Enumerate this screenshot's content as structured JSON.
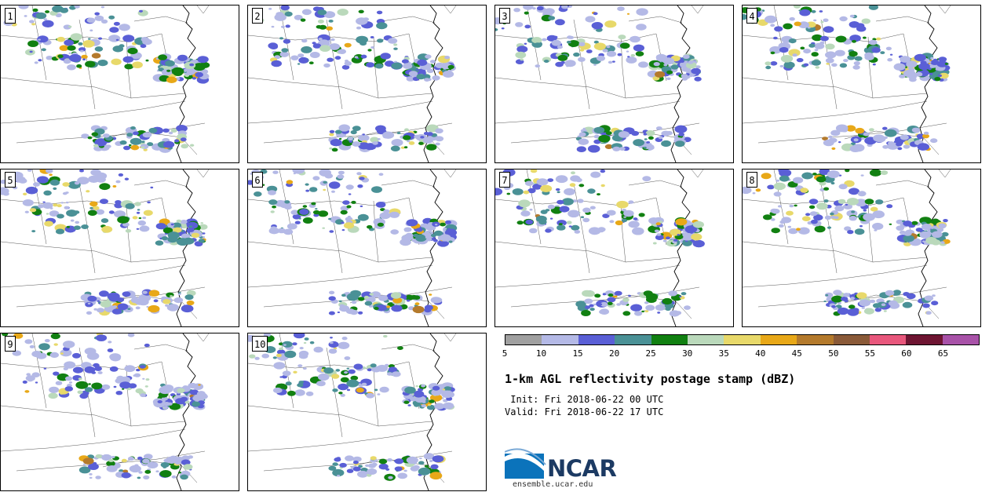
{
  "panels": [
    {
      "label": "1"
    },
    {
      "label": "2"
    },
    {
      "label": "3"
    },
    {
      "label": "4"
    },
    {
      "label": "5"
    },
    {
      "label": "6"
    },
    {
      "label": "7"
    },
    {
      "label": "8"
    },
    {
      "label": "9"
    },
    {
      "label": "10"
    }
  ],
  "colorbar": {
    "colors": [
      "#a0a0a0",
      "#b4b9e6",
      "#5a5fd6",
      "#4a9196",
      "#118011",
      "#bad9bb",
      "#e8d96a",
      "#e8a818",
      "#b47a2c",
      "#8a5a38",
      "#e8577c",
      "#6e1532",
      "#a852a8"
    ],
    "ticks": [
      "5",
      "10",
      "15",
      "20",
      "25",
      "30",
      "35",
      "40",
      "45",
      "50",
      "55",
      "60",
      "65"
    ]
  },
  "title": "1-km AGL reflectivity postage stamp (dBZ)",
  "init": " Init: Fri 2018-06-22 00 UTC",
  "valid": "Valid: Fri 2018-06-22 17 UTC",
  "logo": {
    "text": "NCAR",
    "icon": "ncar-swoosh-logo"
  },
  "url": "ensemble.ucar.edu"
}
